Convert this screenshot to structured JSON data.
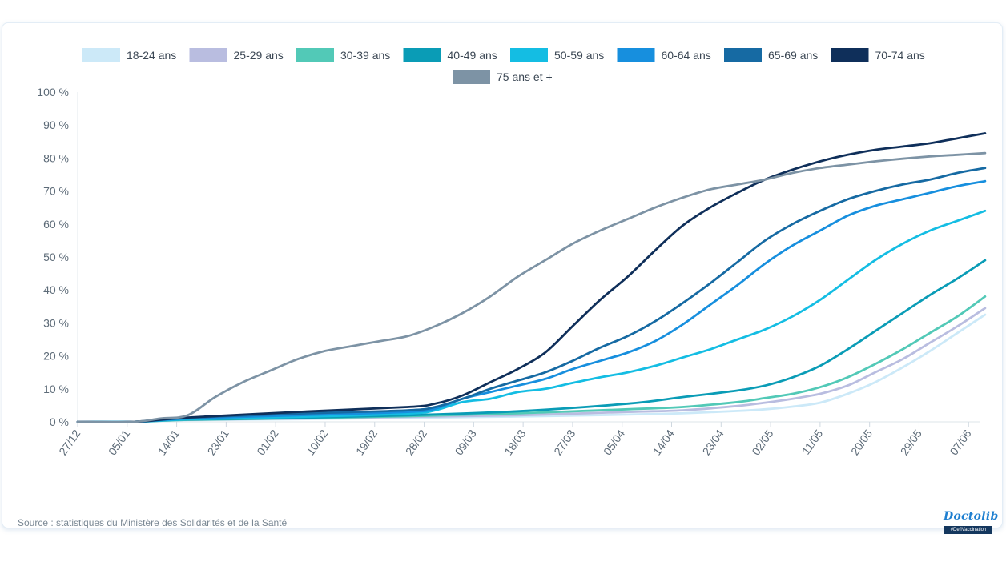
{
  "chart_data": {
    "type": "line",
    "title": "",
    "xlabel": "",
    "ylabel": "",
    "ylim": [
      0,
      100
    ],
    "yticks": [
      0,
      10,
      20,
      30,
      40,
      50,
      60,
      70,
      80,
      90,
      100
    ],
    "ytick_labels": [
      "0 %",
      "10 %",
      "20 %",
      "30 %",
      "40 %",
      "50 %",
      "60 %",
      "70 %",
      "80 %",
      "90 %",
      "100 %"
    ],
    "x_start_label": "27/12",
    "x_end_day": 164,
    "xticks": [
      {
        "day": 0,
        "label": "27/12"
      },
      {
        "day": 9,
        "label": "05/01"
      },
      {
        "day": 18,
        "label": "14/01"
      },
      {
        "day": 27,
        "label": "23/01"
      },
      {
        "day": 36,
        "label": "01/02"
      },
      {
        "day": 45,
        "label": "10/02"
      },
      {
        "day": 54,
        "label": "19/02"
      },
      {
        "day": 63,
        "label": "28/02"
      },
      {
        "day": 72,
        "label": "09/03"
      },
      {
        "day": 81,
        "label": "18/03"
      },
      {
        "day": 90,
        "label": "27/03"
      },
      {
        "day": 99,
        "label": "05/04"
      },
      {
        "day": 108,
        "label": "14/04"
      },
      {
        "day": 117,
        "label": "23/04"
      },
      {
        "day": 126,
        "label": "02/05"
      },
      {
        "day": 135,
        "label": "11/05"
      },
      {
        "day": 144,
        "label": "20/05"
      },
      {
        "day": 153,
        "label": "29/05"
      },
      {
        "day": 162,
        "label": "07/06"
      }
    ],
    "series": [
      {
        "name": "18-24 ans",
        "color": "#cce9f8",
        "points": [
          [
            0,
            0
          ],
          [
            10,
            0
          ],
          [
            20,
            0.5
          ],
          [
            40,
            0.8
          ],
          [
            60,
            1.2
          ],
          [
            80,
            1.6
          ],
          [
            100,
            2.2
          ],
          [
            110,
            2.6
          ],
          [
            120,
            3.3
          ],
          [
            125,
            3.8
          ],
          [
            130,
            4.6
          ],
          [
            135,
            5.8
          ],
          [
            140,
            8.5
          ],
          [
            145,
            12
          ],
          [
            150,
            16.5
          ],
          [
            155,
            21.5
          ],
          [
            160,
            27
          ],
          [
            165,
            32.5
          ]
        ]
      },
      {
        "name": "25-29 ans",
        "color": "#b9bde0",
        "points": [
          [
            0,
            0
          ],
          [
            10,
            0
          ],
          [
            20,
            0.6
          ],
          [
            40,
            1
          ],
          [
            60,
            1.5
          ],
          [
            80,
            2
          ],
          [
            100,
            3
          ],
          [
            110,
            3.5
          ],
          [
            120,
            4.8
          ],
          [
            125,
            5.8
          ],
          [
            130,
            7
          ],
          [
            135,
            8.5
          ],
          [
            140,
            11
          ],
          [
            145,
            15
          ],
          [
            150,
            19
          ],
          [
            155,
            24
          ],
          [
            160,
            29
          ],
          [
            165,
            34.5
          ]
        ]
      },
      {
        "name": "30-39 ans",
        "color": "#52c9b7",
        "points": [
          [
            0,
            0
          ],
          [
            10,
            0
          ],
          [
            20,
            0.6
          ],
          [
            40,
            1.1
          ],
          [
            60,
            1.7
          ],
          [
            80,
            2.6
          ],
          [
            100,
            3.8
          ],
          [
            110,
            4.5
          ],
          [
            120,
            6
          ],
          [
            125,
            7.2
          ],
          [
            130,
            8.5
          ],
          [
            135,
            10.5
          ],
          [
            140,
            13.5
          ],
          [
            145,
            17.5
          ],
          [
            150,
            22
          ],
          [
            155,
            27
          ],
          [
            160,
            32
          ],
          [
            165,
            38
          ]
        ]
      },
      {
        "name": "40-49 ans",
        "color": "#0a9cb6",
        "points": [
          [
            0,
            0
          ],
          [
            10,
            0
          ],
          [
            20,
            0.7
          ],
          [
            40,
            1.2
          ],
          [
            60,
            2
          ],
          [
            80,
            3.2
          ],
          [
            100,
            5.5
          ],
          [
            110,
            7.5
          ],
          [
            120,
            9.5
          ],
          [
            125,
            11
          ],
          [
            130,
            13.5
          ],
          [
            135,
            17
          ],
          [
            140,
            22
          ],
          [
            145,
            27.5
          ],
          [
            150,
            33
          ],
          [
            155,
            38.5
          ],
          [
            160,
            43.5
          ],
          [
            165,
            49
          ]
        ]
      },
      {
        "name": "50-59 ans",
        "color": "#14bde3",
        "points": [
          [
            0,
            0
          ],
          [
            10,
            0
          ],
          [
            20,
            0.8
          ],
          [
            40,
            1.5
          ],
          [
            60,
            2.5
          ],
          [
            65,
            3.5
          ],
          [
            70,
            6
          ],
          [
            75,
            7
          ],
          [
            80,
            9
          ],
          [
            85,
            10
          ],
          [
            90,
            11.8
          ],
          [
            95,
            13.5
          ],
          [
            100,
            15
          ],
          [
            105,
            17
          ],
          [
            110,
            19.5
          ],
          [
            115,
            22
          ],
          [
            120,
            25
          ],
          [
            125,
            28
          ],
          [
            130,
            32
          ],
          [
            135,
            37
          ],
          [
            140,
            43
          ],
          [
            145,
            49
          ],
          [
            150,
            54
          ],
          [
            155,
            58
          ],
          [
            160,
            61
          ],
          [
            165,
            64
          ]
        ]
      },
      {
        "name": "60-64 ans",
        "color": "#178fde",
        "points": [
          [
            0,
            0
          ],
          [
            10,
            0
          ],
          [
            20,
            1
          ],
          [
            40,
            2
          ],
          [
            60,
            3
          ],
          [
            65,
            4
          ],
          [
            70,
            7
          ],
          [
            75,
            9
          ],
          [
            80,
            11
          ],
          [
            85,
            13
          ],
          [
            90,
            16
          ],
          [
            95,
            18.5
          ],
          [
            100,
            21
          ],
          [
            105,
            24.5
          ],
          [
            110,
            29.5
          ],
          [
            115,
            35.5
          ],
          [
            120,
            41.5
          ],
          [
            125,
            48
          ],
          [
            130,
            53.5
          ],
          [
            135,
            58
          ],
          [
            140,
            62.5
          ],
          [
            145,
            65.5
          ],
          [
            150,
            67.5
          ],
          [
            155,
            69.5
          ],
          [
            160,
            71.5
          ],
          [
            165,
            73
          ]
        ]
      },
      {
        "name": "65-69 ans",
        "color": "#166aa3",
        "points": [
          [
            0,
            0
          ],
          [
            10,
            0
          ],
          [
            20,
            1.2
          ],
          [
            40,
            2.5
          ],
          [
            60,
            3.5
          ],
          [
            65,
            4.5
          ],
          [
            70,
            7
          ],
          [
            75,
            10
          ],
          [
            80,
            12.5
          ],
          [
            85,
            15
          ],
          [
            90,
            18.5
          ],
          [
            95,
            22.5
          ],
          [
            100,
            26
          ],
          [
            105,
            30.5
          ],
          [
            110,
            36
          ],
          [
            115,
            42
          ],
          [
            120,
            48.5
          ],
          [
            125,
            55
          ],
          [
            130,
            60
          ],
          [
            135,
            64
          ],
          [
            140,
            67.5
          ],
          [
            145,
            70
          ],
          [
            150,
            72
          ],
          [
            155,
            73.5
          ],
          [
            160,
            75.5
          ],
          [
            165,
            77
          ]
        ]
      },
      {
        "name": "70-74 ans",
        "color": "#0f2f5a",
        "points": [
          [
            0,
            0
          ],
          [
            10,
            0
          ],
          [
            20,
            1.3
          ],
          [
            40,
            3
          ],
          [
            60,
            4.5
          ],
          [
            65,
            5.5
          ],
          [
            70,
            8
          ],
          [
            75,
            12
          ],
          [
            80,
            16
          ],
          [
            85,
            21
          ],
          [
            90,
            29
          ],
          [
            95,
            37
          ],
          [
            100,
            44
          ],
          [
            105,
            52
          ],
          [
            110,
            59.5
          ],
          [
            115,
            65
          ],
          [
            120,
            69.5
          ],
          [
            125,
            73.5
          ],
          [
            130,
            76.5
          ],
          [
            135,
            79
          ],
          [
            140,
            81
          ],
          [
            145,
            82.5
          ],
          [
            150,
            83.5
          ],
          [
            155,
            84.5
          ],
          [
            160,
            86
          ],
          [
            165,
            87.5
          ]
        ]
      },
      {
        "name": "75 ans et +",
        "color": "#7d93a5",
        "points": [
          [
            0,
            0
          ],
          [
            10,
            0
          ],
          [
            15,
            1
          ],
          [
            20,
            2
          ],
          [
            25,
            7.5
          ],
          [
            30,
            12
          ],
          [
            35,
            15.5
          ],
          [
            40,
            19
          ],
          [
            45,
            21.5
          ],
          [
            50,
            23
          ],
          [
            55,
            24.5
          ],
          [
            60,
            26
          ],
          [
            65,
            29
          ],
          [
            70,
            33
          ],
          [
            75,
            38
          ],
          [
            80,
            44
          ],
          [
            85,
            49
          ],
          [
            90,
            54
          ],
          [
            95,
            58
          ],
          [
            100,
            61.5
          ],
          [
            105,
            65
          ],
          [
            110,
            68
          ],
          [
            115,
            70.5
          ],
          [
            120,
            72
          ],
          [
            125,
            73.5
          ],
          [
            130,
            75.5
          ],
          [
            135,
            77
          ],
          [
            140,
            78
          ],
          [
            145,
            79
          ],
          [
            150,
            79.8
          ],
          [
            155,
            80.5
          ],
          [
            160,
            81
          ],
          [
            165,
            81.5
          ]
        ]
      }
    ]
  },
  "legend_title": "",
  "source_text": "Source : statistiques du Ministère des Solidarités et de la Santé",
  "logo": {
    "name": "Doctolib",
    "tag": "#DefiVaccination"
  }
}
